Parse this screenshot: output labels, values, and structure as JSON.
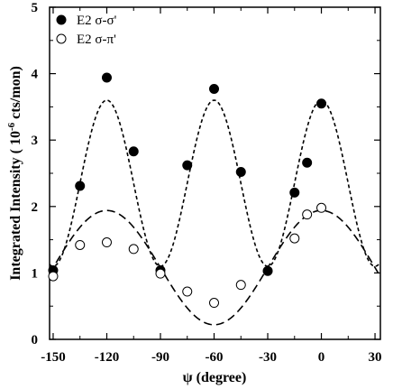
{
  "chart_data": {
    "type": "scatter",
    "xlabel": "ψ (degree)",
    "ylabel_main": "Integrated Intensity ( 10",
    "ylabel_exp": "-6",
    "ylabel_unit": " cts/mon)",
    "xlim": [
      -152,
      33
    ],
    "ylim": [
      0,
      5
    ],
    "xticks": [
      -150,
      -120,
      -90,
      -60,
      -30,
      0,
      30
    ],
    "xtick_labels": [
      "-150",
      "-120",
      "-90",
      "-60",
      "-30",
      "0",
      "30"
    ],
    "yticks": [
      0,
      1,
      2,
      3,
      4,
      5
    ],
    "ytick_labels": [
      "0",
      "1",
      "2",
      "3",
      "4",
      "5"
    ],
    "legend_position": "top-left",
    "series": [
      {
        "name": "E2 σ-σ'",
        "marker": "filled-circle",
        "x": [
          -150,
          -135,
          -120,
          -105,
          -90,
          -75,
          -60,
          -45,
          -30,
          -15,
          -8,
          0
        ],
        "y": [
          1.04,
          2.31,
          3.94,
          2.83,
          1.04,
          2.62,
          3.77,
          2.52,
          1.03,
          2.21,
          2.66,
          3.55
        ]
      },
      {
        "name": "E2 σ-π'",
        "marker": "open-circle",
        "x": [
          -150,
          -135,
          -120,
          -105,
          -90,
          -75,
          -60,
          -45,
          -15,
          -8,
          0
        ],
        "y": [
          0.95,
          1.42,
          1.46,
          1.36,
          0.99,
          0.72,
          0.55,
          0.82,
          1.52,
          1.88,
          1.98
        ]
      }
    ],
    "fits": [
      {
        "name": "fit-sigma-sigma",
        "style": "short-dash",
        "baseline": 1.1,
        "amplitude": 2.5,
        "period": 60,
        "phase": 0,
        "exponent": 2
      },
      {
        "name": "fit-sigma-pi",
        "style": "long-dash",
        "baseline": 0.22,
        "amplitude": 1.72,
        "period": 120,
        "phase": 0,
        "exponent": 2
      }
    ]
  }
}
